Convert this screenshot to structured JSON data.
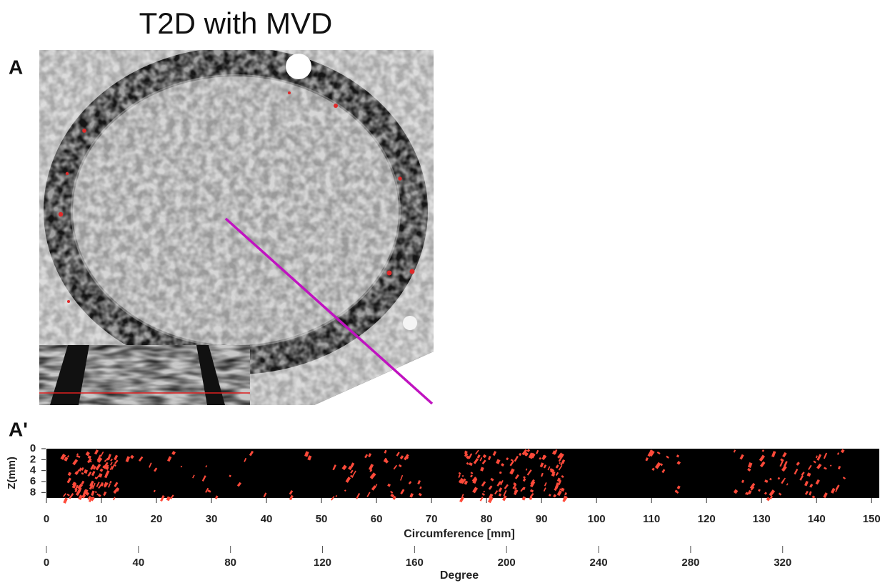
{
  "title": "T2D with MVD",
  "panels": [
    "A",
    "A'"
  ],
  "chart_data": {
    "type": "strip",
    "xlabel": "Circumference [mm]",
    "ylabel": "Z(mm)",
    "xlim": [
      0,
      151.4
    ],
    "xticks": [
      0,
      10,
      20,
      30,
      40,
      50,
      60,
      70,
      80,
      90,
      100,
      110,
      120,
      130,
      140,
      150
    ],
    "ylim": [
      0,
      9
    ],
    "yticks": [
      0,
      2,
      4,
      6,
      8
    ],
    "x2label": "Degree",
    "x2lim": [
      0,
      362
    ],
    "x2ticks": [
      0,
      40,
      80,
      120,
      160,
      200,
      240,
      280,
      320
    ],
    "color": "#ff4a3a"
  }
}
